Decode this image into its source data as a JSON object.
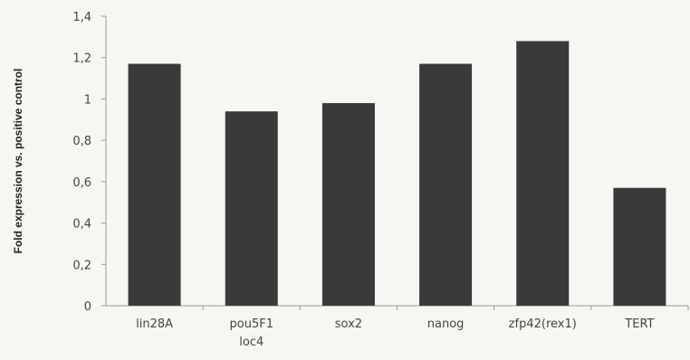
{
  "chart_data": {
    "type": "bar",
    "title": "",
    "xlabel": "",
    "ylabel": "Fold expression vs. positive control",
    "categories": [
      "lin28A",
      "pou5F1 loc4",
      "sox2",
      "nanog",
      "zfp42(rex1)",
      "TERT"
    ],
    "category_lines": [
      [
        "lin28A"
      ],
      [
        "pou5F1",
        "loc4"
      ],
      [
        "sox2"
      ],
      [
        "nanog"
      ],
      [
        "zfp42(rex1)"
      ],
      [
        "TERT"
      ]
    ],
    "values": [
      1.17,
      0.94,
      0.98,
      1.17,
      1.28,
      0.57
    ],
    "ylim": [
      0,
      1.4
    ],
    "yticks": [
      0,
      0.2,
      0.4,
      0.6,
      0.8,
      1,
      1.2,
      1.4
    ],
    "ytick_labels": [
      "0",
      "0,2",
      "0,4",
      "0,6",
      "0,8",
      "1",
      "1,2",
      "1,4"
    ],
    "grid": false,
    "legend": "none",
    "colors": {
      "bar": "#3a3a3a",
      "axis": "#9a9a9a",
      "background": "#f6f6f3"
    }
  }
}
